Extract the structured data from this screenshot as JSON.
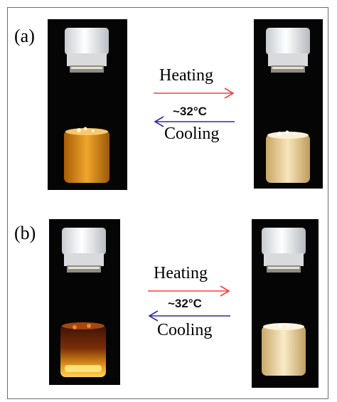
{
  "panels": [
    {
      "label": "(a)",
      "heating_label": "Heating",
      "cooling_label": "Cooling",
      "temperature": "~32°C",
      "left_vial": {
        "liquid_color": "#d88a12",
        "state": "transparent"
      },
      "right_vial": {
        "liquid_color": "#ecd29a",
        "state": "turbid"
      }
    },
    {
      "label": "(b)",
      "heating_label": "Heating",
      "cooling_label": "Cooling",
      "temperature": "~32°C",
      "left_vial": {
        "liquid_color": "#d5890b",
        "state": "transparent"
      },
      "right_vial": {
        "liquid_color": "#ecd8a8",
        "state": "turbid"
      }
    }
  ],
  "colors": {
    "heating_arrow": "#ff3b3b",
    "cooling_arrow": "#2d2d9a",
    "photo_background": "#050505",
    "frame_border": "#6e6e6e"
  }
}
